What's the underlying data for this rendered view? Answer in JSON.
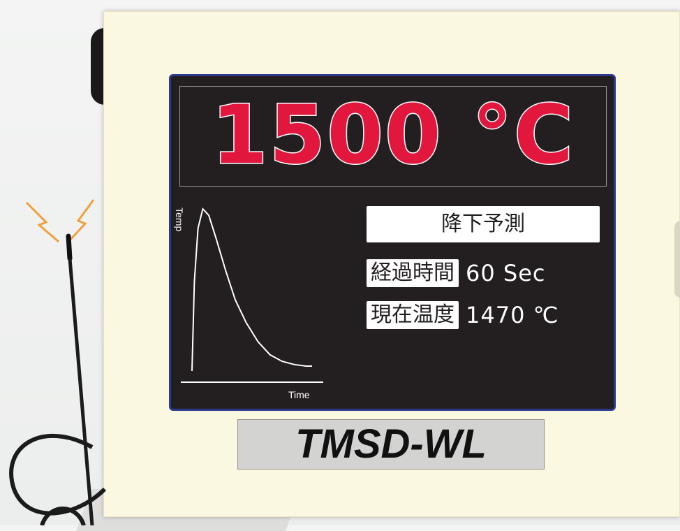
{
  "display": {
    "temperature": "1500 °C"
  },
  "chart_data": {
    "type": "line",
    "xlabel": "Time",
    "ylabel": "Temp",
    "series": [
      {
        "points": [
          [
            0.0,
            0.0
          ],
          [
            0.02,
            0.55
          ],
          [
            0.05,
            0.88
          ],
          [
            0.09,
            1.0
          ],
          [
            0.14,
            0.96
          ],
          [
            0.2,
            0.82
          ],
          [
            0.28,
            0.62
          ],
          [
            0.36,
            0.44
          ],
          [
            0.45,
            0.3
          ],
          [
            0.55,
            0.18
          ],
          [
            0.65,
            0.1
          ],
          [
            0.75,
            0.06
          ],
          [
            0.85,
            0.04
          ],
          [
            0.95,
            0.03
          ],
          [
            1.0,
            0.03
          ]
        ]
      }
    ],
    "grid": false,
    "legend": "none"
  },
  "prediction": {
    "title": "降下予測"
  },
  "elapsed": {
    "label": "経過時間",
    "value": "60 Sec"
  },
  "current_temp": {
    "label": "現在温度",
    "value": "1470 ℃"
  },
  "model": {
    "name": "TMSD-WL"
  },
  "colors": {
    "temperature_red": "#e2173e",
    "lcd_background": "#231f20",
    "lcd_border": "#2b3a8c",
    "enclosure": "#fbf8e2",
    "signal_orange": "#f0a040"
  }
}
